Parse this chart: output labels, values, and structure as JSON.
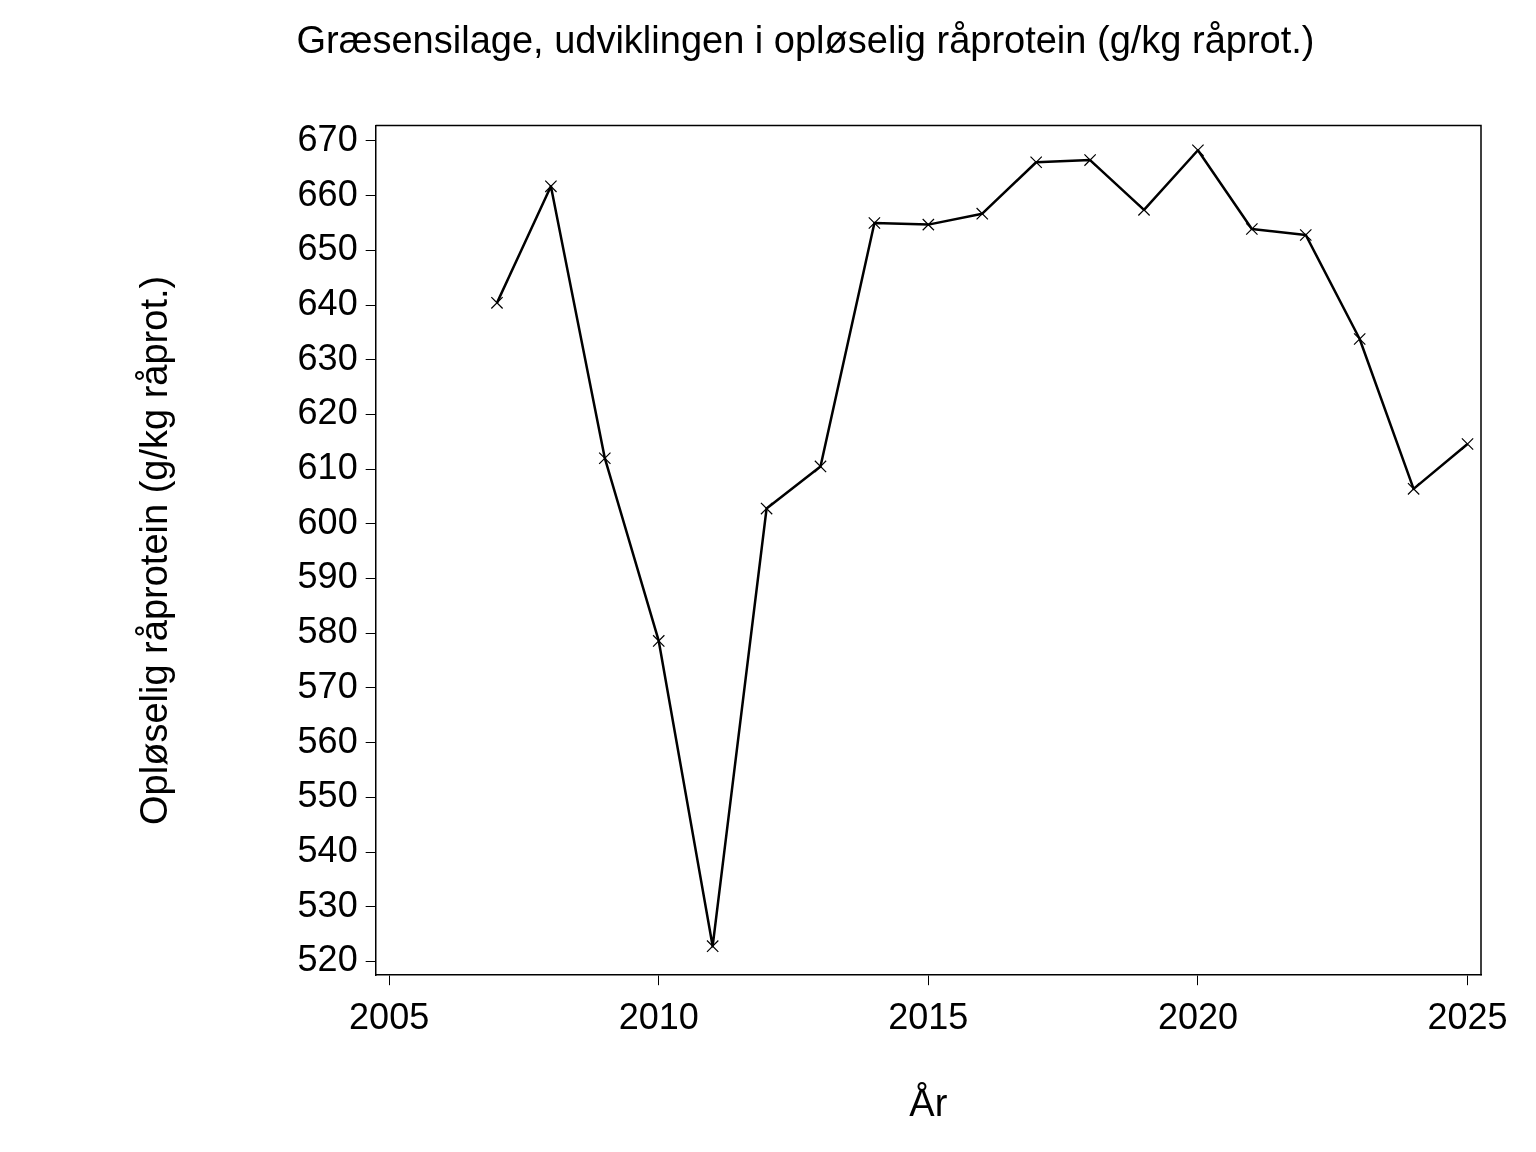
{
  "chart_data": {
    "type": "line",
    "title": "Græsensilage, udviklingen i opløselig råprotein (g/kg råprot.)",
    "xlabel": "År",
    "ylabel": "Opløselig råprotein (g/kg råprot.)",
    "x": [
      2007,
      2008,
      2009,
      2010,
      2011,
      2012,
      2013,
      2014,
      2015,
      2016,
      2017,
      2018,
      2019,
      2020,
      2021,
      2022,
      2023,
      2024,
      2025
    ],
    "series": [
      {
        "color": "#000000",
        "values": [
          640.4,
          661.7,
          612.0,
          578.6,
          522.8,
          602.8,
          610.5,
          655.0,
          654.7,
          656.7,
          666.1,
          666.5,
          657.4,
          668.3,
          653.9,
          652.8,
          633.8,
          606.4,
          614.6
        ]
      }
    ],
    "xlim": [
      2004.75,
      2025.25
    ],
    "xticks": [
      2005,
      2010,
      2015,
      2020,
      2025
    ],
    "ylim": [
      517.5,
      672.8
    ],
    "yticks": [
      520,
      530,
      540,
      550,
      560,
      570,
      580,
      590,
      600,
      610,
      620,
      630,
      640,
      650,
      660,
      670
    ],
    "marker": "cross",
    "line_style": "solid",
    "grid": false,
    "legend": false
  }
}
